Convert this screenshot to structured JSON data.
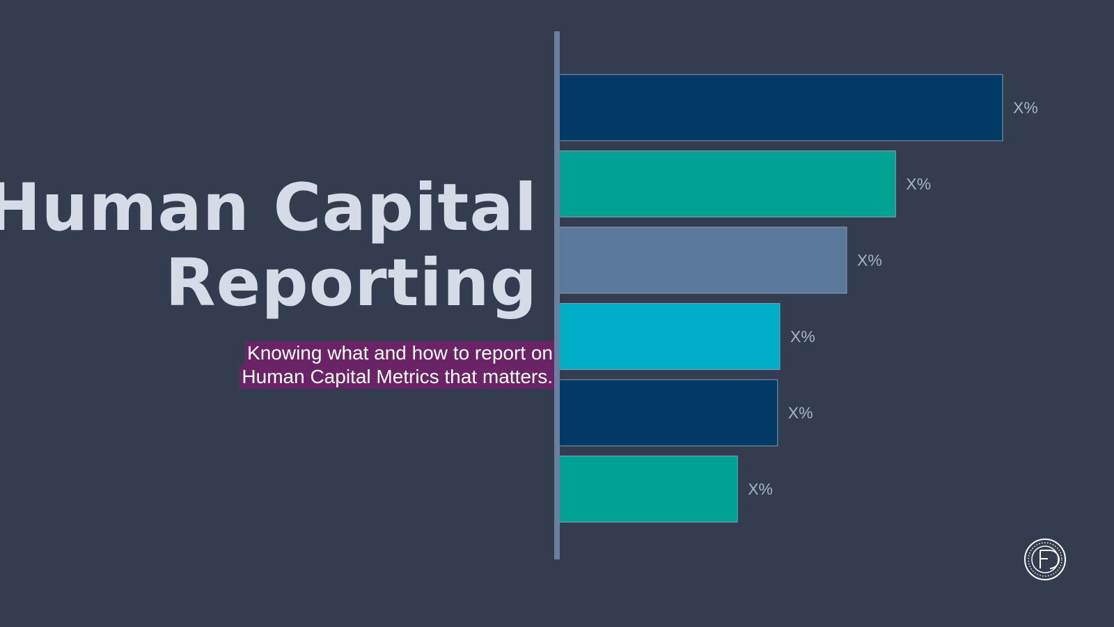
{
  "slide": {
    "title_lines": [
      "Human Capital",
      "Reporting"
    ],
    "subtitle_lines": [
      "Knowing what and how to report on",
      "Human Capital Metrics that matters."
    ]
  },
  "logo": {
    "icon": "circular-monogram-logo-icon",
    "color": "#ffffff"
  },
  "chart_data": {
    "type": "bar",
    "orientation": "horizontal",
    "categories": [],
    "values": [
      100,
      76,
      65,
      50,
      49.5,
      40.5
    ],
    "labels": [
      "X%",
      "X%",
      "X%",
      "X%",
      "X%",
      "X%"
    ],
    "colors": [
      "#003a65",
      "#00a393",
      "#5b7a9b",
      "#00aec8",
      "#003a65",
      "#00a393"
    ],
    "axis_color": "#6c7f9e",
    "xlim": [
      0,
      100
    ],
    "title": "",
    "xlabel": "",
    "ylabel": "",
    "grid": false,
    "legend": "none"
  }
}
